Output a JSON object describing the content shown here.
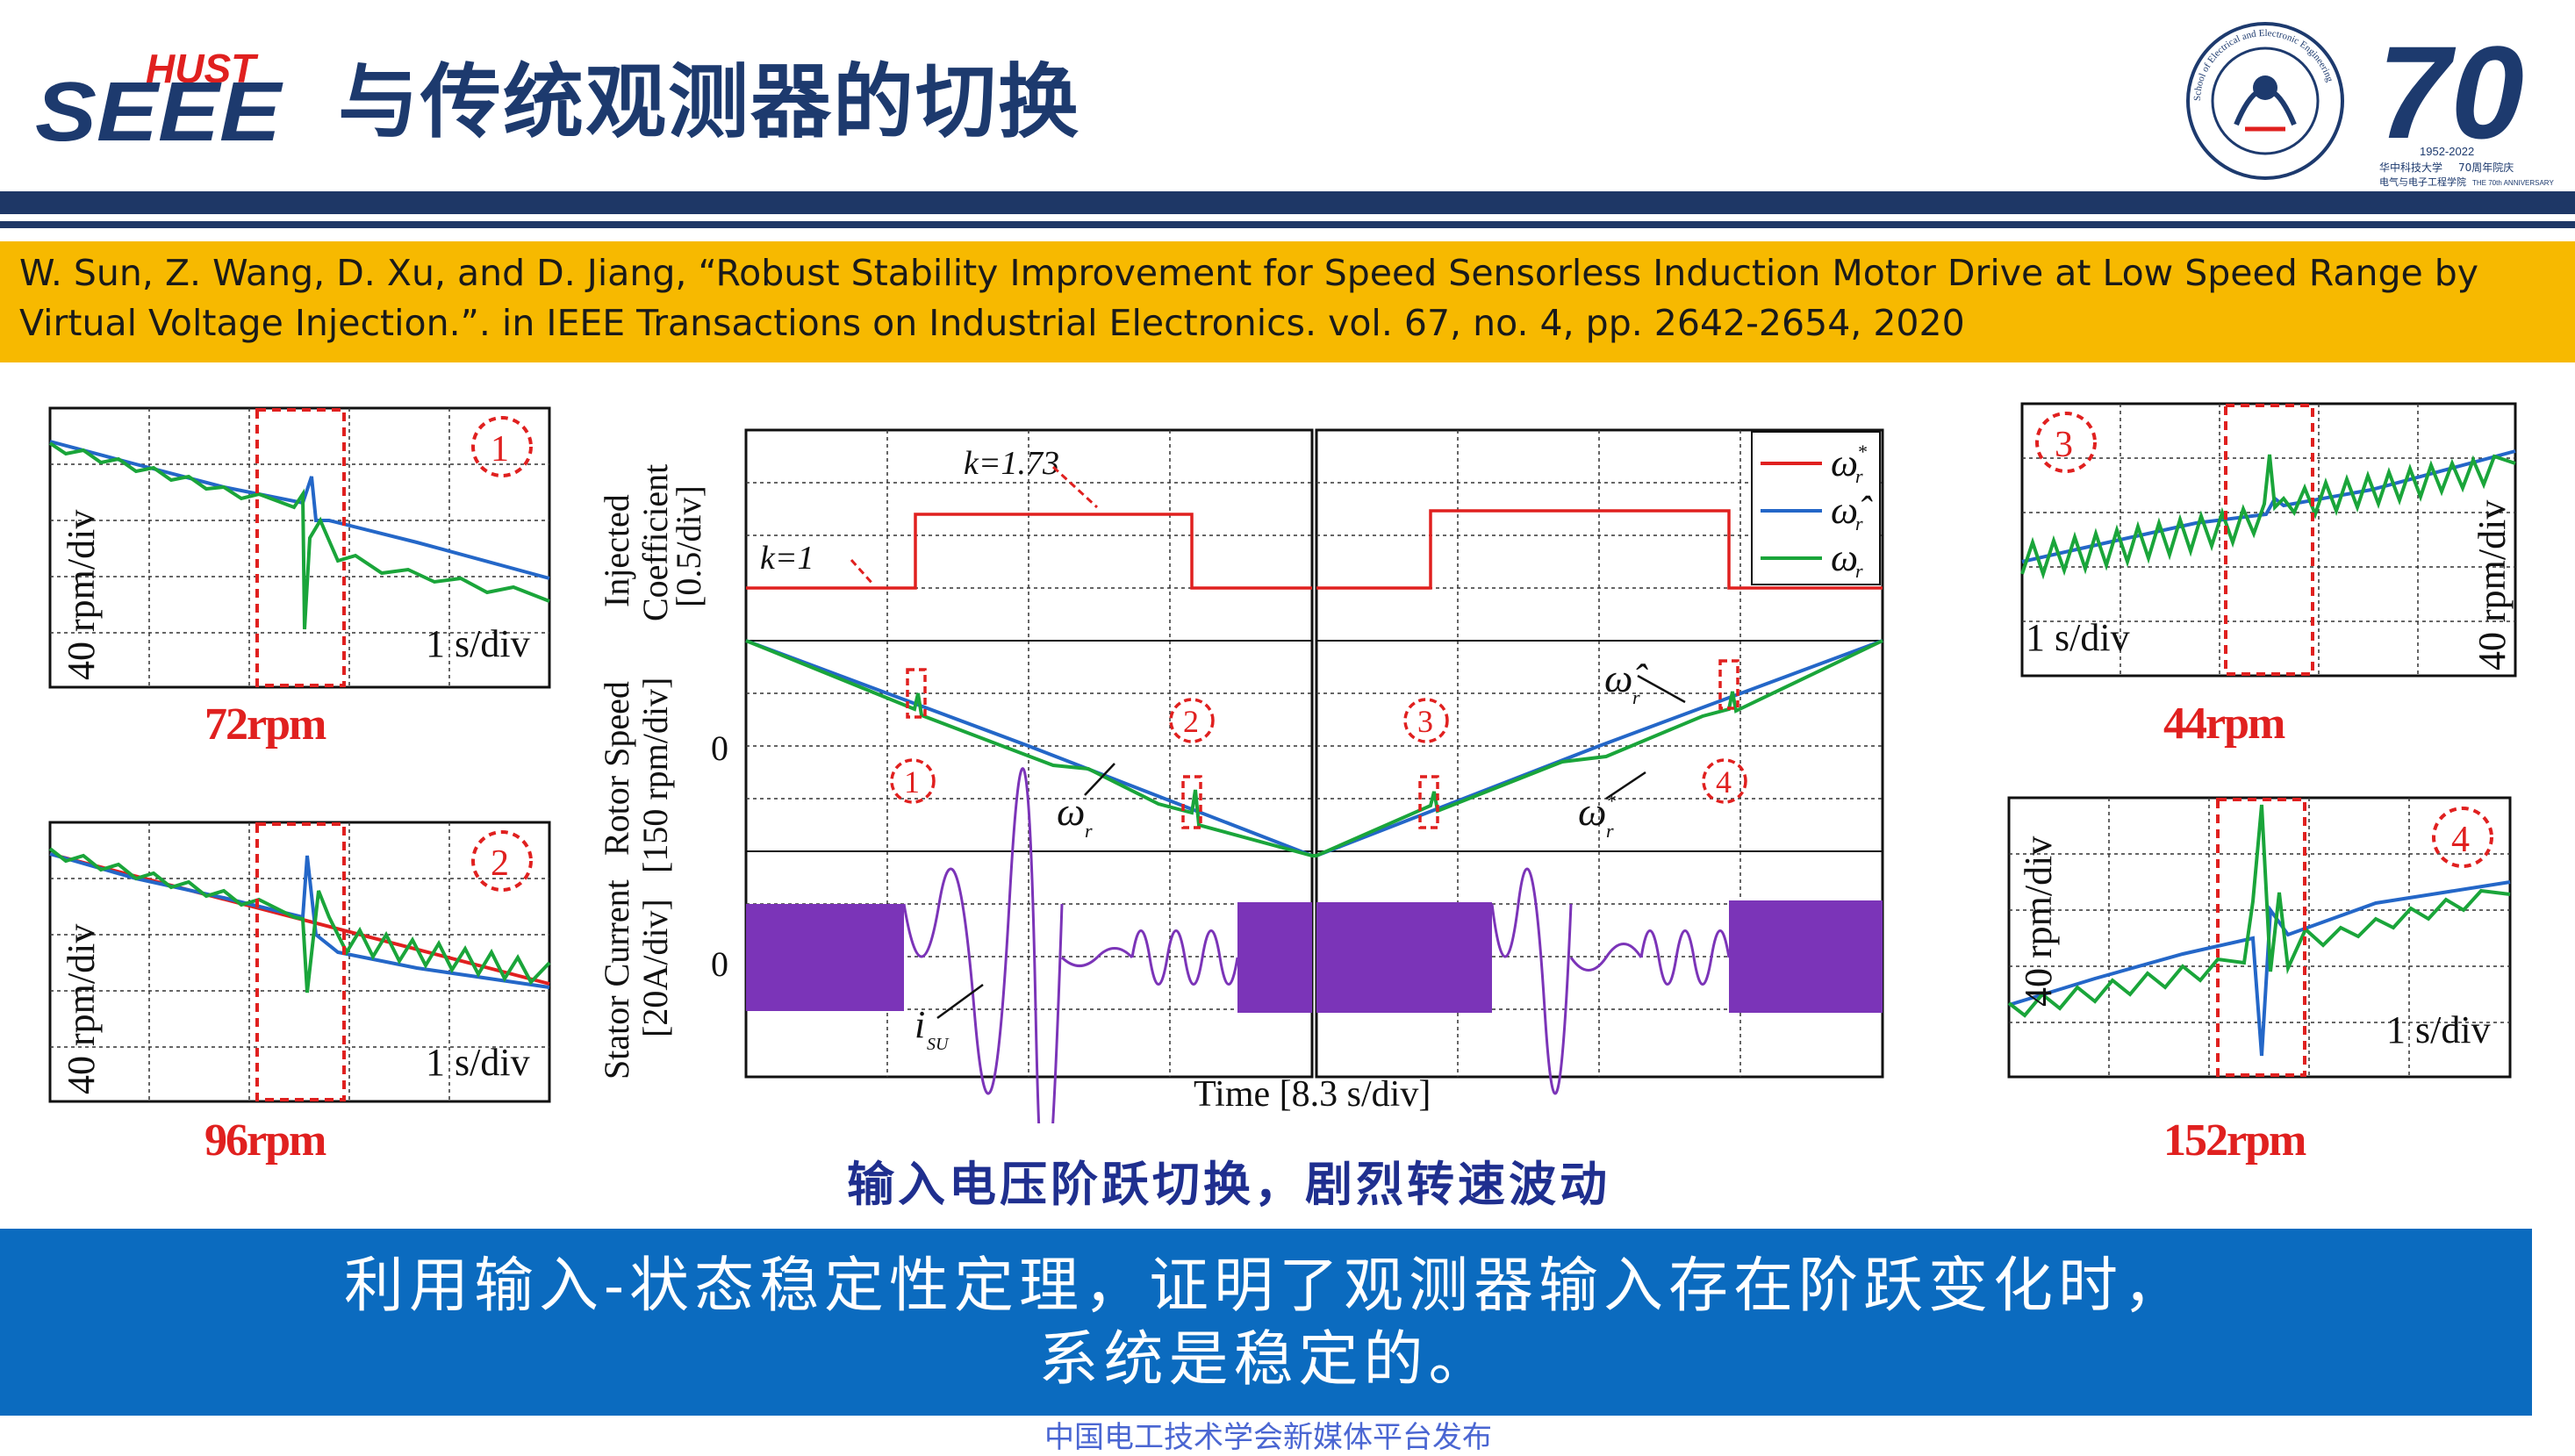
{
  "header": {
    "logo_text_top": "HUST",
    "logo_text_main": "SEEE",
    "title": "与传统观测器的切换",
    "seal_text": "School of Electrical and Electronic Engineering",
    "anniv_number": "70",
    "anniv_years": "1952-2022",
    "anniv_line1": "华中科技大学",
    "anniv_line2": "70周年院庆",
    "anniv_line3": "电气与电子工程学院",
    "anniv_line4": "THE 70th ANNIVERSARY"
  },
  "citation": {
    "line1": "W. Sun, Z. Wang, D. Xu, and D. Jiang, “Robust Stability Improvement for Speed Sensorless Induction Motor Drive at Low Speed Range by",
    "line2": "Virtual Voltage Injection.”. in IEEE Transactions on Industrial Electronics. vol. 67, no. 4, pp. 2642-2654, 2020"
  },
  "colors": {
    "title_navy": "#1d3a6e",
    "band_yellow": "#f7b900",
    "conclusion_blue": "#0b6bbf",
    "highlight_red": "#e0201f",
    "series_green": "#1aa53a",
    "series_blue": "#2467c8",
    "series_red": "#e0201f",
    "current_purple": "#7b34b8"
  },
  "zooms": [
    {
      "id": "1",
      "ylabel": "40 rpm/div",
      "xlabel": "1 s/div",
      "caption": "72rpm"
    },
    {
      "id": "2",
      "ylabel": "40 rpm/div",
      "xlabel": "1 s/div",
      "caption": "96rpm"
    },
    {
      "id": "3",
      "ylabel": "40 rpm/div",
      "xlabel": "1 s/div",
      "caption": "44rpm"
    },
    {
      "id": "4",
      "ylabel": "40 rpm/div",
      "xlabel": "1 s/div",
      "caption": "152rpm"
    }
  ],
  "main_figure": {
    "ylabel_coef_1": "Injected",
    "ylabel_coef_2": "Coefficient",
    "ylabel_coef_3": "[0.5/div]",
    "ylabel_speed_1": "Rotor Speed",
    "ylabel_speed_2": "[150 rpm/div]",
    "ylabel_current_1": "Stator Current",
    "ylabel_current_2": "[20A/div]",
    "zero_speed": "0",
    "zero_current": "0",
    "k_high_label": "k=1.73",
    "k_low_label": "k=1",
    "omega_r_label": "ω",
    "omega_r_sub": "r",
    "omega_hat_label": "ω̂",
    "omega_star_label": "ω",
    "star": "*",
    "isu_label": "i",
    "isu_sub": "SU",
    "xlabel": "Time [8.3 s/div]",
    "legend": [
      {
        "sym": "ω",
        "sub": "r",
        "sup": "*",
        "color": "#e0201f"
      },
      {
        "sym": "ω̂",
        "sub": "r",
        "sup": "",
        "color": "#2467c8"
      },
      {
        "sym": "ω",
        "sub": "r",
        "sup": "",
        "color": "#1aa53a"
      }
    ],
    "markers": [
      "1",
      "2",
      "3",
      "4"
    ]
  },
  "figure_caption": "输入电压阶跃切换，剧烈转速波动",
  "conclusion": {
    "line1": "利用输入-状态稳定性定理，证明了观测器输入存在阶跃变化时，",
    "line2": "系统是稳定的。"
  },
  "footer": "中国电工技术学会新媒体平台发布"
}
